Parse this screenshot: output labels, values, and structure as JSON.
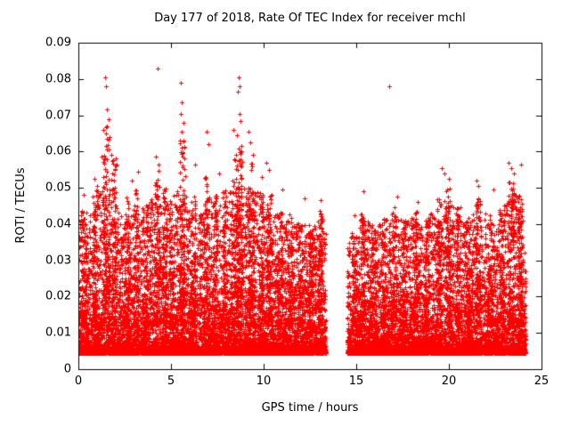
{
  "chart_data": {
    "type": "scatter",
    "title": "Day 177 of 2018, Rate Of TEC Index for receiver mchl",
    "xlabel": "GPS time / hours",
    "ylabel": "ROTI / TECUs",
    "xlim": [
      0,
      25
    ],
    "ylim": [
      0,
      0.09
    ],
    "xtick_values": [
      0,
      5,
      10,
      15,
      20,
      25
    ],
    "xtick_labels": [
      "0",
      "5",
      "10",
      "15",
      "20",
      "25"
    ],
    "ytick_values": [
      0,
      0.01,
      0.02,
      0.03,
      0.04,
      0.05,
      0.06,
      0.07,
      0.08,
      0.09
    ],
    "ytick_labels": [
      "0",
      "0.01",
      "0.02",
      "0.03",
      "0.04",
      "0.05",
      "0.06",
      "0.07",
      "0.08",
      "0.09"
    ],
    "grid": false,
    "legend": null,
    "marker": "plus",
    "marker_color": "#ff0000",
    "frame_color": "#000000",
    "background_color": "#ffffff",
    "coverage": [
      [
        0.0,
        13.35
      ],
      [
        14.5,
        24.15
      ]
    ],
    "data_gap_hours": [
      13.35,
      14.5
    ],
    "dense_band": {
      "y_floor": 0.0045,
      "y_typical_max": 0.035
    },
    "seed": 20180177,
    "n_background": 15000,
    "density_power": 3.4,
    "envelope": [
      [
        0,
        0.044
      ],
      [
        0.5,
        0.04
      ],
      [
        0.9,
        0.048
      ],
      [
        1.5,
        0.052
      ],
      [
        2,
        0.046
      ],
      [
        2.5,
        0.04
      ],
      [
        3,
        0.046
      ],
      [
        3.5,
        0.042
      ],
      [
        4,
        0.048
      ],
      [
        4.5,
        0.05
      ],
      [
        5,
        0.044
      ],
      [
        5.5,
        0.052
      ],
      [
        6,
        0.046
      ],
      [
        6.5,
        0.042
      ],
      [
        7,
        0.048
      ],
      [
        7.5,
        0.044
      ],
      [
        8,
        0.048
      ],
      [
        8.5,
        0.052
      ],
      [
        9,
        0.05
      ],
      [
        9.5,
        0.05
      ],
      [
        10,
        0.046
      ],
      [
        10.5,
        0.042
      ],
      [
        11,
        0.044
      ],
      [
        11.5,
        0.04
      ],
      [
        12,
        0.041
      ],
      [
        12.5,
        0.038
      ],
      [
        13,
        0.042
      ],
      [
        13.35,
        0.038
      ],
      [
        14.5,
        0.034
      ],
      [
        15,
        0.038
      ],
      [
        15.5,
        0.043
      ],
      [
        16,
        0.039
      ],
      [
        16.5,
        0.041
      ],
      [
        17,
        0.044
      ],
      [
        17.5,
        0.041
      ],
      [
        18,
        0.043
      ],
      [
        18.5,
        0.039
      ],
      [
        19,
        0.043
      ],
      [
        19.5,
        0.048
      ],
      [
        20,
        0.046
      ],
      [
        20.5,
        0.043
      ],
      [
        21,
        0.04
      ],
      [
        21.5,
        0.046
      ],
      [
        22,
        0.043
      ],
      [
        22.5,
        0.039
      ],
      [
        23,
        0.047
      ],
      [
        23.5,
        0.05
      ],
      [
        24,
        0.044
      ],
      [
        24.15,
        0.028
      ]
    ],
    "bursts": [
      {
        "x": 0.3,
        "w": 0.3,
        "ymax": 0.046,
        "n": 70
      },
      {
        "x": 0.9,
        "w": 0.25,
        "ymax": 0.05,
        "n": 70
      },
      {
        "x": 1.5,
        "w": 0.35,
        "ymax": 0.068,
        "n": 110
      },
      {
        "x": 1.9,
        "w": 0.25,
        "ymax": 0.058,
        "n": 80
      },
      {
        "x": 2.6,
        "w": 0.25,
        "ymax": 0.048,
        "n": 70
      },
      {
        "x": 3.1,
        "w": 0.25,
        "ymax": 0.05,
        "n": 80
      },
      {
        "x": 3.6,
        "w": 0.25,
        "ymax": 0.046,
        "n": 60
      },
      {
        "x": 4.25,
        "w": 0.3,
        "ymax": 0.056,
        "n": 90
      },
      {
        "x": 4.65,
        "w": 0.25,
        "ymax": 0.05,
        "n": 70
      },
      {
        "x": 5.05,
        "w": 0.25,
        "ymax": 0.048,
        "n": 60
      },
      {
        "x": 5.6,
        "w": 0.3,
        "ymax": 0.063,
        "n": 110
      },
      {
        "x": 6.2,
        "w": 0.25,
        "ymax": 0.048,
        "n": 70
      },
      {
        "x": 6.85,
        "w": 0.25,
        "ymax": 0.054,
        "n": 80
      },
      {
        "x": 7.4,
        "w": 0.25,
        "ymax": 0.048,
        "n": 70
      },
      {
        "x": 7.9,
        "w": 0.25,
        "ymax": 0.05,
        "n": 70
      },
      {
        "x": 8.4,
        "w": 0.25,
        "ymax": 0.058,
        "n": 80
      },
      {
        "x": 8.7,
        "w": 0.3,
        "ymax": 0.064,
        "n": 110
      },
      {
        "x": 9.3,
        "w": 0.3,
        "ymax": 0.057,
        "n": 90
      },
      {
        "x": 9.85,
        "w": 0.25,
        "ymax": 0.05,
        "n": 70
      },
      {
        "x": 10.3,
        "w": 0.25,
        "ymax": 0.049,
        "n": 70
      },
      {
        "x": 10.9,
        "w": 0.25,
        "ymax": 0.045,
        "n": 60
      },
      {
        "x": 11.4,
        "w": 0.25,
        "ymax": 0.043,
        "n": 60
      },
      {
        "x": 12.0,
        "w": 0.25,
        "ymax": 0.042,
        "n": 60
      },
      {
        "x": 12.55,
        "w": 0.25,
        "ymax": 0.04,
        "n": 60
      },
      {
        "x": 13.05,
        "w": 0.25,
        "ymax": 0.044,
        "n": 70
      },
      {
        "x": 14.85,
        "w": 0.25,
        "ymax": 0.038,
        "n": 50
      },
      {
        "x": 15.35,
        "w": 0.25,
        "ymax": 0.044,
        "n": 70
      },
      {
        "x": 15.9,
        "w": 0.25,
        "ymax": 0.04,
        "n": 60
      },
      {
        "x": 16.5,
        "w": 0.25,
        "ymax": 0.042,
        "n": 60
      },
      {
        "x": 17.05,
        "w": 0.25,
        "ymax": 0.045,
        "n": 70
      },
      {
        "x": 17.6,
        "w": 0.25,
        "ymax": 0.041,
        "n": 60
      },
      {
        "x": 18.2,
        "w": 0.25,
        "ymax": 0.044,
        "n": 70
      },
      {
        "x": 18.8,
        "w": 0.25,
        "ymax": 0.041,
        "n": 60
      },
      {
        "x": 19.45,
        "w": 0.3,
        "ymax": 0.048,
        "n": 80
      },
      {
        "x": 19.95,
        "w": 0.25,
        "ymax": 0.05,
        "n": 80
      },
      {
        "x": 20.5,
        "w": 0.25,
        "ymax": 0.045,
        "n": 70
      },
      {
        "x": 21.05,
        "w": 0.25,
        "ymax": 0.042,
        "n": 60
      },
      {
        "x": 21.6,
        "w": 0.25,
        "ymax": 0.048,
        "n": 80
      },
      {
        "x": 22.2,
        "w": 0.25,
        "ymax": 0.043,
        "n": 60
      },
      {
        "x": 22.85,
        "w": 0.25,
        "ymax": 0.044,
        "n": 70
      },
      {
        "x": 23.35,
        "w": 0.3,
        "ymax": 0.052,
        "n": 90
      },
      {
        "x": 23.85,
        "w": 0.25,
        "ymax": 0.048,
        "n": 70
      }
    ],
    "outliers": [
      [
        1.42,
        0.0805
      ],
      [
        1.47,
        0.078
      ],
      [
        1.55,
        0.0715
      ],
      [
        1.62,
        0.069
      ],
      [
        1.35,
        0.066
      ],
      [
        1.7,
        0.064
      ],
      [
        1.5,
        0.0615
      ],
      [
        1.8,
        0.059
      ],
      [
        1.25,
        0.0585
      ],
      [
        2.0,
        0.058
      ],
      [
        2.05,
        0.0565
      ],
      [
        4.28,
        0.083
      ],
      [
        4.2,
        0.0585
      ],
      [
        4.35,
        0.0565
      ],
      [
        3.2,
        0.0545
      ],
      [
        2.9,
        0.052
      ],
      [
        5.55,
        0.079
      ],
      [
        5.6,
        0.0735
      ],
      [
        5.52,
        0.0705
      ],
      [
        5.65,
        0.068
      ],
      [
        5.58,
        0.0655
      ],
      [
        5.48,
        0.063
      ],
      [
        5.7,
        0.061
      ],
      [
        5.62,
        0.0585
      ],
      [
        6.3,
        0.0565
      ],
      [
        6.9,
        0.0655
      ],
      [
        7.0,
        0.062
      ],
      [
        7.6,
        0.054
      ],
      [
        8.35,
        0.066
      ],
      [
        8.65,
        0.0805
      ],
      [
        8.72,
        0.078
      ],
      [
        8.6,
        0.0765
      ],
      [
        8.68,
        0.0705
      ],
      [
        8.75,
        0.0685
      ],
      [
        8.58,
        0.0645
      ],
      [
        8.8,
        0.0615
      ],
      [
        8.5,
        0.059
      ],
      [
        9.2,
        0.0655
      ],
      [
        9.3,
        0.0625
      ],
      [
        9.4,
        0.059
      ],
      [
        9.9,
        0.053
      ],
      [
        10.15,
        0.057
      ],
      [
        10.3,
        0.055
      ],
      [
        11.0,
        0.0495
      ],
      [
        12.2,
        0.047
      ],
      [
        13.1,
        0.0465
      ],
      [
        0.85,
        0.0525
      ],
      [
        1.0,
        0.0505
      ],
      [
        0.3,
        0.048
      ],
      [
        14.9,
        0.0425
      ],
      [
        15.4,
        0.049
      ],
      [
        16.8,
        0.078
      ],
      [
        17.2,
        0.0475
      ],
      [
        18.3,
        0.046
      ],
      [
        19.6,
        0.0555
      ],
      [
        19.75,
        0.054
      ],
      [
        20.0,
        0.0525
      ],
      [
        21.5,
        0.052
      ],
      [
        21.6,
        0.0505
      ],
      [
        22.4,
        0.0495
      ],
      [
        23.2,
        0.057
      ],
      [
        23.35,
        0.0555
      ],
      [
        23.5,
        0.054
      ],
      [
        23.9,
        0.0565
      ]
    ]
  }
}
